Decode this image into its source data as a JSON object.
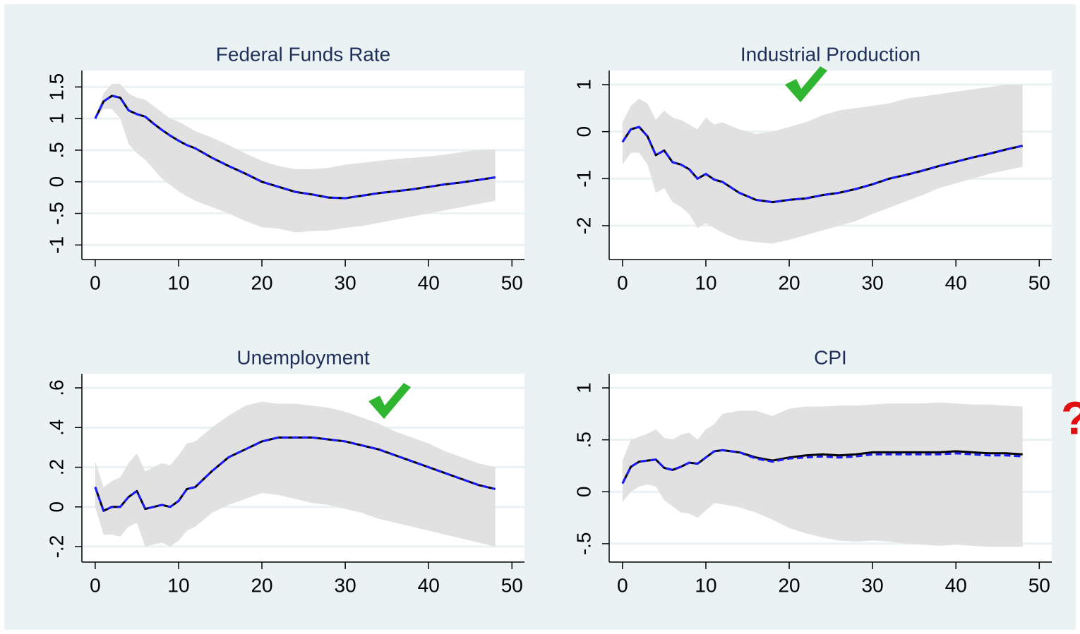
{
  "chart_data": [
    {
      "type": "line",
      "title": "Federal Funds Rate",
      "x": [
        0,
        1,
        2,
        3,
        4,
        5,
        6,
        7,
        8,
        9,
        10,
        11,
        12,
        14,
        16,
        18,
        20,
        22,
        24,
        26,
        28,
        30,
        32,
        34,
        36,
        38,
        40,
        42,
        44,
        46,
        48
      ],
      "band": {
        "color": "#e1e1e1",
        "upper": [
          1.0,
          1.4,
          1.55,
          1.55,
          1.4,
          1.33,
          1.3,
          1.2,
          1.1,
          1.0,
          0.95,
          0.88,
          0.8,
          0.7,
          0.58,
          0.45,
          0.33,
          0.25,
          0.2,
          0.2,
          0.22,
          0.27,
          0.3,
          0.33,
          0.36,
          0.38,
          0.4,
          0.43,
          0.47,
          0.5,
          0.51
        ],
        "lower": [
          1.0,
          1.15,
          1.15,
          1.0,
          0.6,
          0.45,
          0.35,
          0.2,
          0.05,
          -0.05,
          -0.15,
          -0.23,
          -0.3,
          -0.4,
          -0.5,
          -0.62,
          -0.72,
          -0.74,
          -0.8,
          -0.78,
          -0.77,
          -0.73,
          -0.7,
          -0.65,
          -0.6,
          -0.55,
          -0.5,
          -0.45,
          -0.4,
          -0.35,
          -0.3
        ]
      },
      "series": [
        {
          "color": "#000000",
          "line_style": "solid",
          "values": [
            1.0,
            1.27,
            1.36,
            1.33,
            1.13,
            1.07,
            1.03,
            0.92,
            0.82,
            0.73,
            0.65,
            0.58,
            0.53,
            0.38,
            0.25,
            0.13,
            0.0,
            -0.08,
            -0.16,
            -0.2,
            -0.25,
            -0.26,
            -0.22,
            -0.18,
            -0.15,
            -0.12,
            -0.08,
            -0.04,
            -0.01,
            0.03,
            0.07
          ]
        },
        {
          "color": "#1a1aff",
          "line_style": "dashed",
          "values": [
            1.0,
            1.27,
            1.36,
            1.33,
            1.13,
            1.07,
            1.03,
            0.92,
            0.82,
            0.73,
            0.65,
            0.58,
            0.53,
            0.38,
            0.25,
            0.13,
            0.0,
            -0.08,
            -0.16,
            -0.2,
            -0.25,
            -0.26,
            -0.22,
            -0.18,
            -0.15,
            -0.12,
            -0.08,
            -0.04,
            -0.01,
            0.03,
            0.07
          ]
        }
      ],
      "xlim": [
        -1.6,
        51.5
      ],
      "xticks": [
        0,
        10,
        20,
        30,
        40,
        50
      ],
      "ylim": [
        -1.23,
        1.76
      ],
      "yticks": [
        -1,
        {
          "value": -0.5,
          "label": "-.5"
        },
        0,
        {
          "value": 0.5,
          "label": ".5"
        },
        1,
        1.5
      ],
      "grid": true
    },
    {
      "type": "line",
      "title": "Industrial Production",
      "x": [
        0,
        1,
        2,
        3,
        4,
        5,
        6,
        7,
        8,
        9,
        10,
        11,
        12,
        14,
        16,
        18,
        20,
        22,
        24,
        26,
        28,
        30,
        32,
        34,
        36,
        38,
        40,
        42,
        44,
        46,
        48
      ],
      "band": {
        "color": "#e1e1e1",
        "upper": [
          0.2,
          0.55,
          0.7,
          0.6,
          0.25,
          0.45,
          0.3,
          0.25,
          0.15,
          0.05,
          0.3,
          0.15,
          0.2,
          0.05,
          -0.05,
          0.0,
          0.1,
          0.2,
          0.35,
          0.45,
          0.5,
          0.55,
          0.6,
          0.7,
          0.75,
          0.8,
          0.85,
          0.9,
          0.95,
          1.0,
          1.0
        ],
        "lower": [
          -0.7,
          -0.45,
          -0.45,
          -0.7,
          -1.3,
          -1.2,
          -1.5,
          -1.6,
          -1.75,
          -2.05,
          -1.95,
          -2.05,
          -2.15,
          -2.3,
          -2.35,
          -2.38,
          -2.3,
          -2.2,
          -2.1,
          -2.0,
          -1.9,
          -1.75,
          -1.62,
          -1.48,
          -1.35,
          -1.2,
          -1.1,
          -1.0,
          -0.9,
          -0.82,
          -0.75
        ]
      },
      "series": [
        {
          "color": "#000000",
          "line_style": "solid",
          "values": [
            -0.22,
            0.05,
            0.1,
            -0.1,
            -0.5,
            -0.4,
            -0.65,
            -0.7,
            -0.8,
            -1.0,
            -0.9,
            -1.02,
            -1.07,
            -1.3,
            -1.45,
            -1.5,
            -1.45,
            -1.42,
            -1.35,
            -1.3,
            -1.22,
            -1.12,
            -1.0,
            -0.92,
            -0.83,
            -0.73,
            -0.64,
            -0.55,
            -0.47,
            -0.38,
            -0.3
          ]
        },
        {
          "color": "#1a1aff",
          "line_style": "dashed",
          "values": [
            -0.22,
            0.05,
            0.1,
            -0.1,
            -0.5,
            -0.4,
            -0.65,
            -0.7,
            -0.8,
            -1.0,
            -0.9,
            -1.02,
            -1.07,
            -1.3,
            -1.45,
            -1.5,
            -1.45,
            -1.42,
            -1.35,
            -1.3,
            -1.22,
            -1.12,
            -1.0,
            -0.92,
            -0.83,
            -0.73,
            -0.64,
            -0.55,
            -0.47,
            -0.38,
            -0.3
          ]
        }
      ],
      "xlim": [
        -1.6,
        51.5
      ],
      "xticks": [
        0,
        10,
        20,
        30,
        40,
        50
      ],
      "ylim": [
        -2.72,
        1.3
      ],
      "yticks": [
        -2,
        -1,
        0,
        1
      ],
      "grid": true
    },
    {
      "type": "line",
      "title": "Unemployment",
      "x": [
        0,
        1,
        2,
        3,
        4,
        5,
        6,
        7,
        8,
        9,
        10,
        11,
        12,
        14,
        16,
        18,
        20,
        22,
        24,
        26,
        28,
        30,
        32,
        34,
        36,
        38,
        40,
        42,
        44,
        46,
        48
      ],
      "band": {
        "color": "#e1e1e1",
        "upper": [
          0.23,
          0.1,
          0.13,
          0.15,
          0.22,
          0.27,
          0.18,
          0.2,
          0.22,
          0.21,
          0.26,
          0.32,
          0.33,
          0.4,
          0.46,
          0.51,
          0.53,
          0.52,
          0.52,
          0.51,
          0.5,
          0.48,
          0.45,
          0.42,
          0.38,
          0.35,
          0.32,
          0.28,
          0.25,
          0.22,
          0.2
        ],
        "lower": [
          0.0,
          -0.14,
          -0.14,
          -0.15,
          -0.1,
          -0.08,
          -0.2,
          -0.19,
          -0.18,
          -0.2,
          -0.17,
          -0.12,
          -0.1,
          -0.03,
          0.01,
          0.04,
          0.07,
          0.06,
          0.04,
          0.02,
          0.01,
          -0.01,
          -0.03,
          -0.06,
          -0.08,
          -0.1,
          -0.12,
          -0.14,
          -0.16,
          -0.18,
          -0.2
        ]
      },
      "series": [
        {
          "color": "#000000",
          "line_style": "solid",
          "values": [
            0.1,
            -0.02,
            0.0,
            0.0,
            0.05,
            0.08,
            -0.01,
            0.0,
            0.01,
            0.0,
            0.03,
            0.09,
            0.1,
            0.18,
            0.25,
            0.29,
            0.33,
            0.35,
            0.35,
            0.35,
            0.34,
            0.33,
            0.31,
            0.29,
            0.26,
            0.23,
            0.2,
            0.17,
            0.14,
            0.11,
            0.09
          ]
        },
        {
          "color": "#1a1aff",
          "line_style": "dashed",
          "values": [
            0.1,
            -0.02,
            0.0,
            0.0,
            0.05,
            0.08,
            -0.01,
            0.0,
            0.01,
            0.0,
            0.03,
            0.09,
            0.1,
            0.18,
            0.25,
            0.29,
            0.33,
            0.35,
            0.35,
            0.35,
            0.34,
            0.33,
            0.31,
            0.29,
            0.26,
            0.23,
            0.2,
            0.17,
            0.14,
            0.11,
            0.09
          ]
        }
      ],
      "xlim": [
        -1.6,
        51.5
      ],
      "xticks": [
        0,
        10,
        20,
        30,
        40,
        50
      ],
      "ylim": [
        -0.278,
        0.671
      ],
      "yticks": [
        {
          "value": -0.2,
          "label": "-.2"
        },
        0,
        {
          "value": 0.2,
          "label": ".2"
        },
        {
          "value": 0.4,
          "label": ".4"
        },
        {
          "value": 0.6,
          "label": ".6"
        }
      ],
      "grid": true
    },
    {
      "type": "line",
      "title": "CPI",
      "x": [
        0,
        1,
        2,
        3,
        4,
        5,
        6,
        7,
        8,
        9,
        10,
        11,
        12,
        14,
        16,
        18,
        20,
        22,
        24,
        26,
        28,
        30,
        32,
        34,
        36,
        38,
        40,
        42,
        44,
        46,
        48
      ],
      "band": {
        "color": "#e1e1e1",
        "upper": [
          0.3,
          0.5,
          0.53,
          0.56,
          0.6,
          0.52,
          0.5,
          0.55,
          0.57,
          0.5,
          0.6,
          0.65,
          0.75,
          0.78,
          0.78,
          0.73,
          0.8,
          0.82,
          0.82,
          0.83,
          0.83,
          0.84,
          0.85,
          0.85,
          0.85,
          0.86,
          0.85,
          0.84,
          0.84,
          0.83,
          0.82
        ],
        "lower": [
          -0.1,
          0.0,
          0.05,
          0.07,
          0.05,
          -0.08,
          -0.14,
          -0.2,
          -0.21,
          -0.25,
          -0.18,
          -0.11,
          -0.12,
          -0.15,
          -0.2,
          -0.27,
          -0.35,
          -0.4,
          -0.44,
          -0.47,
          -0.48,
          -0.47,
          -0.48,
          -0.5,
          -0.51,
          -0.52,
          -0.51,
          -0.52,
          -0.53,
          -0.53,
          -0.53
        ]
      },
      "series": [
        {
          "color": "#000000",
          "line_style": "solid",
          "values": [
            0.08,
            0.24,
            0.29,
            0.3,
            0.31,
            0.23,
            0.21,
            0.24,
            0.28,
            0.27,
            0.33,
            0.39,
            0.4,
            0.38,
            0.33,
            0.3,
            0.33,
            0.35,
            0.36,
            0.35,
            0.36,
            0.38,
            0.38,
            0.38,
            0.38,
            0.38,
            0.39,
            0.38,
            0.37,
            0.37,
            0.36
          ]
        },
        {
          "color": "#1a1aff",
          "line_style": "dashed",
          "values": [
            0.08,
            0.24,
            0.29,
            0.3,
            0.31,
            0.23,
            0.21,
            0.24,
            0.28,
            0.27,
            0.33,
            0.39,
            0.4,
            0.38,
            0.32,
            0.29,
            0.32,
            0.33,
            0.34,
            0.33,
            0.34,
            0.36,
            0.36,
            0.36,
            0.36,
            0.36,
            0.37,
            0.36,
            0.35,
            0.35,
            0.34
          ]
        }
      ],
      "xlim": [
        -1.6,
        51.5
      ],
      "xticks": [
        0,
        10,
        20,
        30,
        40,
        50
      ],
      "ylim": [
        -0.677,
        1.136
      ],
      "yticks": [
        {
          "value": -0.5,
          "label": "-.5"
        },
        0,
        {
          "value": 0.5,
          "label": ".5"
        },
        1
      ],
      "grid": true
    }
  ],
  "annotation": "?"
}
